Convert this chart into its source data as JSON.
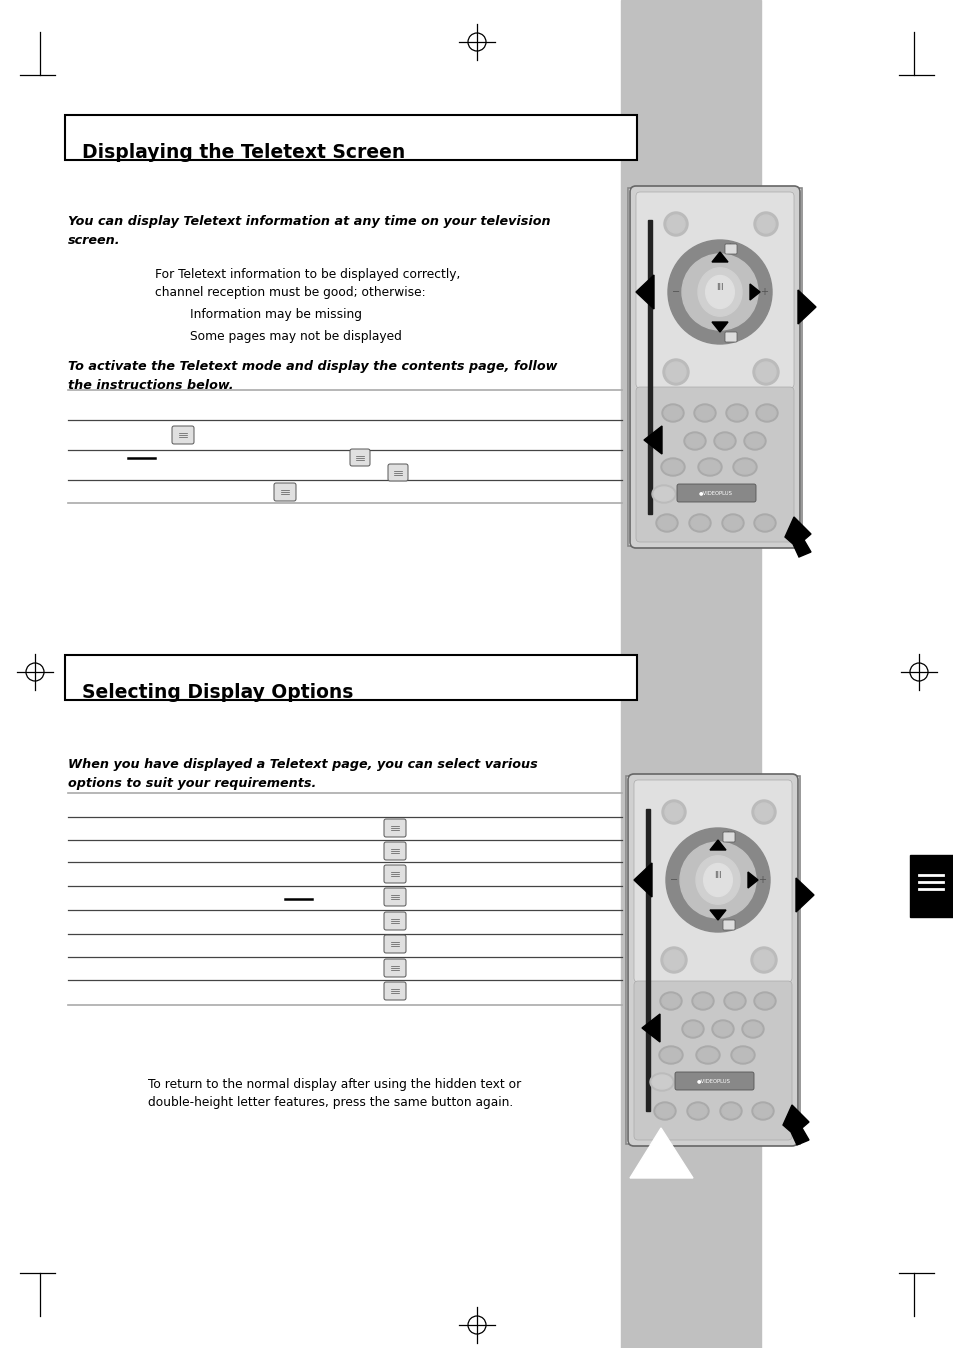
{
  "page_bg": "#ffffff",
  "gray_sidebar_color": "#c0c0c0",
  "title1": "Displaying the Teletext Screen",
  "title2": "Selecting Display Options",
  "s1_bold1": "You can display Teletext information at any time on your television\nscreen.",
  "s1_para1": "For Teletext information to be displayed correctly,\nchannel reception must be good; otherwise:",
  "s1_bullet1": "Information may be missing",
  "s1_bullet2": "Some pages may not be displayed",
  "s1_bold2": "To activate the Teletext mode and display the contents page, follow\nthe instructions below.",
  "s2_bold1": "When you have displayed a Teletext page, you can select various\noptions to suit your requirements.",
  "footer": "To return to the normal display after using the hidden text or\ndouble-height letter features, press the same button again.",
  "line_light": "#aaaaaa",
  "line_dark": "#555555",
  "remote_body": "#d8d8d8",
  "remote_border": "#888888",
  "remote_btn": "#b0b0b0",
  "remote_btn_dark": "#aaaaaa",
  "nav_outer": "#999999",
  "nav_mid": "#c5c5c5",
  "nav_inner": "#cccccc"
}
